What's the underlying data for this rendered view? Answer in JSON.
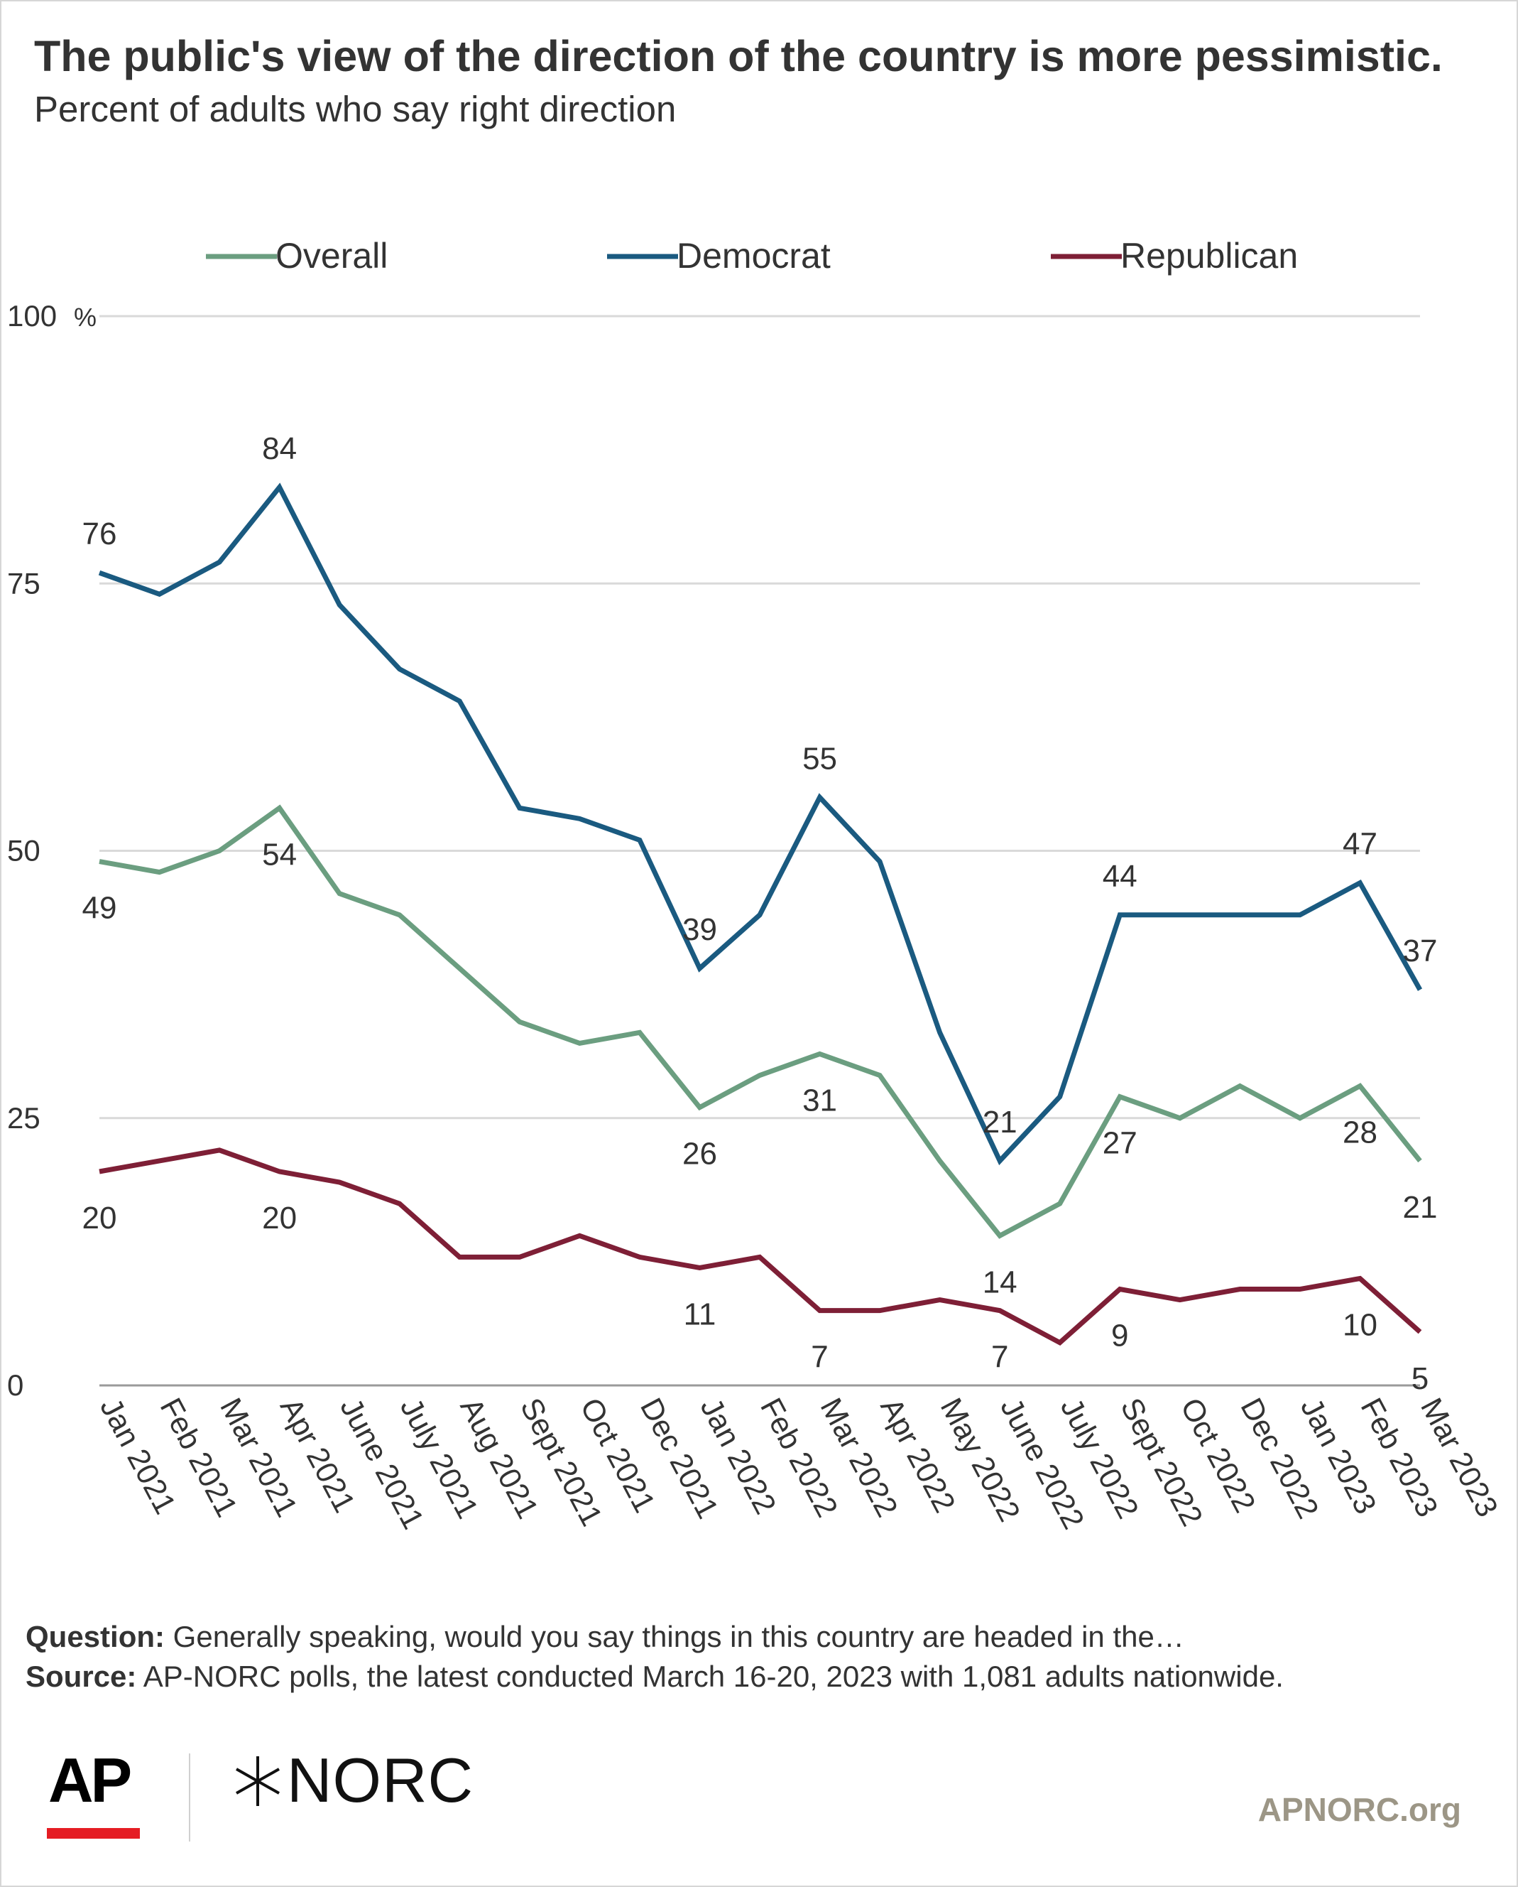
{
  "header": {
    "title": "The public's view of the direction of the country is more pessimistic.",
    "subtitle": "Percent of adults who say right direction"
  },
  "footer": {
    "question_label": "Question:",
    "question_text": "Generally speaking, would you say things in this country are headed in the…",
    "source_label": "Source:",
    "source_text": "AP-NORC polls, the latest conducted March 16-20, 2023 with 1,081 adults nationwide.",
    "logo_ap": "AP",
    "logo_norc": "NORC",
    "site": "APNORC.org"
  },
  "chart_data": {
    "type": "line",
    "title": "The public's view of the direction of the country is more pessimistic.",
    "subtitle": "Percent of adults who say right direction",
    "x": [
      "Jan 2021",
      "Feb 2021",
      "Mar 2021",
      "Apr 2021",
      "June 2021",
      "July 2021",
      "Aug 2021",
      "Sept 2021",
      "Oct 2021",
      "Dec 2021",
      "Jan 2022",
      "Feb 2022",
      "Mar 2022",
      "Apr 2022",
      "May 2022",
      "June 2022",
      "July 2022",
      "Sept 2022",
      "Oct 2022",
      "Dec 2022",
      "Jan 2023",
      "Feb 2023",
      "Mar 2023"
    ],
    "series": [
      {
        "name": "Overall",
        "color": "#6b9e80",
        "values": [
          49,
          48,
          50,
          54,
          46,
          44,
          39,
          34,
          32,
          33,
          26,
          29,
          31,
          29,
          21,
          14,
          17,
          27,
          25,
          28,
          25,
          28,
          21
        ]
      },
      {
        "name": "Democrat",
        "color": "#1a5a80",
        "values": [
          76,
          74,
          77,
          84,
          73,
          67,
          64,
          54,
          53,
          51,
          39,
          44,
          55,
          49,
          33,
          21,
          27,
          44,
          44,
          44,
          44,
          47,
          37
        ]
      },
      {
        "name": "Republican",
        "color": "#7e1f36",
        "values": [
          20,
          21,
          22,
          20,
          19,
          17,
          12,
          12,
          14,
          12,
          11,
          12,
          7,
          7,
          8,
          7,
          4,
          9,
          8,
          9,
          9,
          10,
          5
        ]
      }
    ],
    "data_labels": [
      {
        "series": 0,
        "index": 0,
        "text": "49",
        "pos": "below"
      },
      {
        "series": 0,
        "index": 3,
        "text": "54",
        "pos": "below"
      },
      {
        "series": 0,
        "index": 10,
        "text": "26",
        "pos": "below"
      },
      {
        "series": 0,
        "index": 12,
        "text": "31",
        "pos": "below"
      },
      {
        "series": 0,
        "index": 15,
        "text": "14",
        "pos": "below"
      },
      {
        "series": 0,
        "index": 17,
        "text": "27",
        "pos": "below"
      },
      {
        "series": 0,
        "index": 21,
        "text": "28",
        "pos": "below"
      },
      {
        "series": 0,
        "index": 22,
        "text": "21",
        "pos": "below"
      },
      {
        "series": 1,
        "index": 0,
        "text": "76",
        "pos": "above"
      },
      {
        "series": 1,
        "index": 3,
        "text": "84",
        "pos": "above"
      },
      {
        "series": 1,
        "index": 10,
        "text": "39",
        "pos": "above"
      },
      {
        "series": 1,
        "index": 12,
        "text": "55",
        "pos": "above"
      },
      {
        "series": 1,
        "index": 15,
        "text": "21",
        "pos": "above"
      },
      {
        "series": 1,
        "index": 17,
        "text": "44",
        "pos": "above"
      },
      {
        "series": 1,
        "index": 21,
        "text": "47",
        "pos": "above"
      },
      {
        "series": 1,
        "index": 22,
        "text": "37",
        "pos": "above"
      },
      {
        "series": 2,
        "index": 0,
        "text": "20",
        "pos": "below"
      },
      {
        "series": 2,
        "index": 3,
        "text": "20",
        "pos": "below"
      },
      {
        "series": 2,
        "index": 10,
        "text": "11",
        "pos": "below"
      },
      {
        "series": 2,
        "index": 12,
        "text": "7",
        "pos": "below"
      },
      {
        "series": 2,
        "index": 15,
        "text": "7",
        "pos": "below"
      },
      {
        "series": 2,
        "index": 17,
        "text": "9",
        "pos": "below"
      },
      {
        "series": 2,
        "index": 21,
        "text": "10",
        "pos": "below"
      },
      {
        "series": 2,
        "index": 22,
        "text": "5",
        "pos": "below"
      }
    ],
    "y_ticks": [
      0,
      25,
      50,
      75,
      100
    ],
    "y_tick_labels": [
      "0",
      "25",
      "50",
      "75",
      "100"
    ],
    "y_unit": "%",
    "ylim": [
      0,
      100
    ],
    "grid": true,
    "legend": "top"
  }
}
